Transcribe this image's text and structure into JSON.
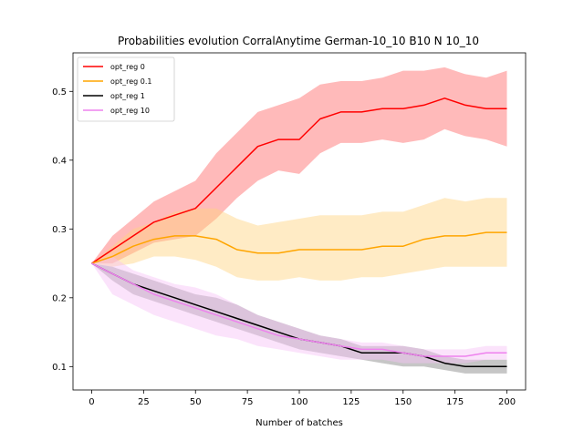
{
  "chart_data": {
    "type": "line",
    "title": "Probabilities evolution CorralAnytime German-10_10 B10 N 10_10",
    "xlabel": "Number of batches",
    "ylabel": "",
    "xlim": [
      -9,
      209
    ],
    "ylim": [
      0.066,
      0.556
    ],
    "xticks": [
      0,
      25,
      50,
      75,
      100,
      125,
      150,
      175,
      200
    ],
    "yticks": [
      0.1,
      0.2,
      0.3,
      0.4,
      0.5
    ],
    "xtick_labels": [
      "0",
      "25",
      "50",
      "75",
      "100",
      "125",
      "150",
      "175",
      "200"
    ],
    "ytick_labels": [
      "0.1",
      "0.2",
      "0.3",
      "0.4",
      "0.5"
    ],
    "grid": false,
    "legend_position": "upper-left",
    "series": [
      {
        "name": "opt_reg 0",
        "color": "#ff0000",
        "band_color": "#ff6666",
        "x": [
          0,
          10,
          20,
          30,
          40,
          50,
          60,
          70,
          80,
          90,
          100,
          110,
          120,
          130,
          140,
          150,
          160,
          170,
          180,
          190,
          200
        ],
        "mean": [
          0.25,
          0.27,
          0.29,
          0.31,
          0.32,
          0.33,
          0.36,
          0.39,
          0.42,
          0.43,
          0.43,
          0.46,
          0.47,
          0.47,
          0.475,
          0.475,
          0.48,
          0.49,
          0.48,
          0.475,
          0.475
        ],
        "upper": [
          0.25,
          0.29,
          0.315,
          0.34,
          0.355,
          0.37,
          0.41,
          0.44,
          0.47,
          0.48,
          0.49,
          0.51,
          0.515,
          0.515,
          0.52,
          0.53,
          0.53,
          0.535,
          0.525,
          0.52,
          0.53
        ],
        "lower": [
          0.25,
          0.25,
          0.265,
          0.28,
          0.285,
          0.29,
          0.315,
          0.345,
          0.37,
          0.385,
          0.38,
          0.41,
          0.425,
          0.425,
          0.43,
          0.425,
          0.43,
          0.445,
          0.435,
          0.43,
          0.42
        ]
      },
      {
        "name": "opt_reg 0.1",
        "color": "#ffa500",
        "band_color": "#ffd27f",
        "x": [
          0,
          10,
          20,
          30,
          40,
          50,
          60,
          70,
          80,
          90,
          100,
          110,
          120,
          130,
          140,
          150,
          160,
          170,
          180,
          190,
          200
        ],
        "mean": [
          0.25,
          0.26,
          0.275,
          0.285,
          0.29,
          0.29,
          0.285,
          0.27,
          0.265,
          0.265,
          0.27,
          0.27,
          0.27,
          0.27,
          0.275,
          0.275,
          0.285,
          0.29,
          0.29,
          0.295,
          0.295
        ],
        "upper": [
          0.25,
          0.275,
          0.3,
          0.31,
          0.325,
          0.33,
          0.33,
          0.315,
          0.305,
          0.31,
          0.315,
          0.32,
          0.32,
          0.32,
          0.325,
          0.325,
          0.335,
          0.345,
          0.34,
          0.345,
          0.345
        ],
        "lower": [
          0.25,
          0.245,
          0.25,
          0.26,
          0.26,
          0.255,
          0.245,
          0.23,
          0.225,
          0.225,
          0.23,
          0.225,
          0.225,
          0.23,
          0.23,
          0.235,
          0.24,
          0.245,
          0.245,
          0.245,
          0.245
        ]
      },
      {
        "name": "opt_reg 1",
        "color": "#000000",
        "band_color": "#808080",
        "x": [
          0,
          10,
          20,
          30,
          40,
          50,
          60,
          70,
          80,
          90,
          100,
          110,
          120,
          130,
          140,
          150,
          160,
          170,
          180,
          190,
          200
        ],
        "mean": [
          0.25,
          0.235,
          0.22,
          0.21,
          0.2,
          0.19,
          0.18,
          0.17,
          0.16,
          0.15,
          0.14,
          0.135,
          0.13,
          0.12,
          0.12,
          0.12,
          0.115,
          0.105,
          0.1,
          0.1,
          0.1
        ],
        "upper": [
          0.25,
          0.245,
          0.235,
          0.225,
          0.215,
          0.205,
          0.2,
          0.19,
          0.175,
          0.165,
          0.155,
          0.145,
          0.14,
          0.13,
          0.13,
          0.13,
          0.125,
          0.115,
          0.11,
          0.11,
          0.11
        ],
        "lower": [
          0.25,
          0.225,
          0.205,
          0.195,
          0.185,
          0.175,
          0.165,
          0.155,
          0.145,
          0.135,
          0.125,
          0.12,
          0.115,
          0.11,
          0.105,
          0.1,
          0.1,
          0.095,
          0.09,
          0.09,
          0.09
        ]
      },
      {
        "name": "opt_reg 10",
        "color": "#ee82ee",
        "band_color": "#f6c0f6",
        "x": [
          0,
          10,
          20,
          30,
          40,
          50,
          60,
          70,
          80,
          90,
          100,
          110,
          120,
          130,
          140,
          150,
          160,
          170,
          180,
          190,
          200
        ],
        "mean": [
          0.25,
          0.235,
          0.22,
          0.205,
          0.195,
          0.185,
          0.175,
          0.165,
          0.155,
          0.145,
          0.14,
          0.135,
          0.13,
          0.125,
          0.125,
          0.12,
          0.115,
          0.115,
          0.115,
          0.12,
          0.12
        ],
        "upper": [
          0.25,
          0.26,
          0.24,
          0.23,
          0.22,
          0.215,
          0.205,
          0.19,
          0.175,
          0.165,
          0.155,
          0.145,
          0.14,
          0.135,
          0.135,
          0.13,
          0.125,
          0.125,
          0.125,
          0.13,
          0.13
        ],
        "lower": [
          0.25,
          0.205,
          0.19,
          0.175,
          0.165,
          0.155,
          0.145,
          0.14,
          0.13,
          0.125,
          0.12,
          0.115,
          0.11,
          0.11,
          0.11,
          0.105,
          0.105,
          0.105,
          0.105,
          0.11,
          0.11
        ]
      }
    ]
  }
}
